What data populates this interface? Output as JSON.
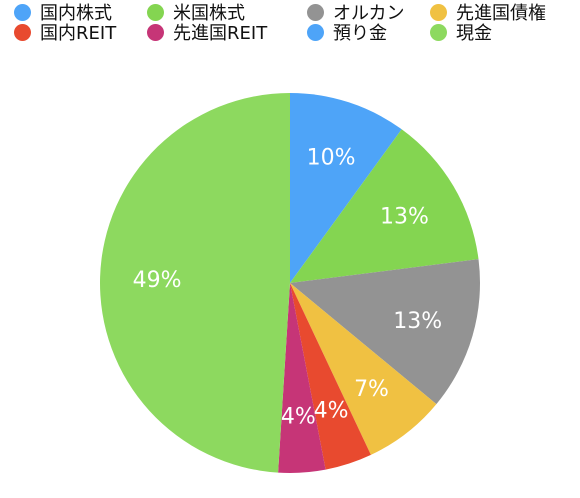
{
  "chart_data": {
    "type": "pie",
    "title": "",
    "categories": [
      "国内株式",
      "米国株式",
      "オルカン",
      "先進国債権",
      "国内REIT",
      "先進国REIT",
      "預り金",
      "現金"
    ],
    "slices": [
      {
        "name": "預り金",
        "value": 10,
        "label": "10%",
        "color": "#4ea4f8"
      },
      {
        "name": "米国株式",
        "value": 13,
        "label": "13%",
        "color": "#84d551"
      },
      {
        "name": "オルカン",
        "value": 13,
        "label": "13%",
        "color": "#939393"
      },
      {
        "name": "先進国債権",
        "value": 7,
        "label": "7%",
        "color": "#f0c142"
      },
      {
        "name": "国内REIT",
        "value": 4,
        "label": "4%",
        "color": "#e84a2f"
      },
      {
        "name": "先進国REIT",
        "value": 4,
        "label": "4%",
        "color": "#c63577"
      },
      {
        "name": "現金",
        "value": 49,
        "label": "49%",
        "color": "#8dd95f"
      }
    ],
    "legend": {
      "placement": "top",
      "items": [
        {
          "label": "国内株式",
          "color": "#4ea4f8"
        },
        {
          "label": "米国株式",
          "color": "#84d551"
        },
        {
          "label": "オルカン",
          "color": "#939393"
        },
        {
          "label": "先進国債権",
          "color": "#f0c142"
        },
        {
          "label": "国内REIT",
          "color": "#e84a2f"
        },
        {
          "label": "先進国REIT",
          "color": "#c63577"
        },
        {
          "label": "預り金",
          "color": "#4ea4f8"
        },
        {
          "label": "現金",
          "color": "#8dd95f"
        }
      ]
    }
  }
}
